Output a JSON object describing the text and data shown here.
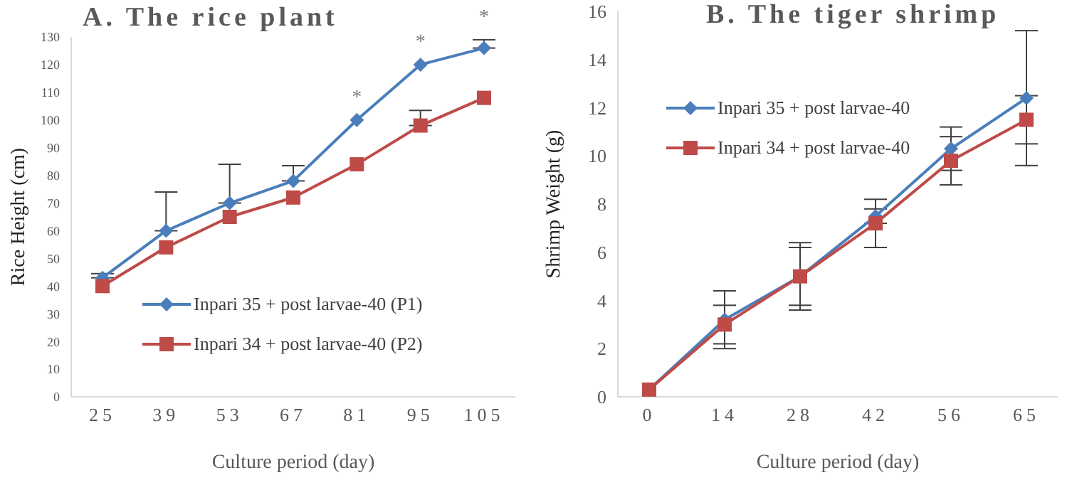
{
  "chart_data": [
    {
      "type": "line",
      "title": "A. The rice plant",
      "xlabel": "Culture period (day)",
      "ylabel": "Rice Height (cm)",
      "categories": [
        "25",
        "39",
        "53",
        "67",
        "81",
        "95",
        "105"
      ],
      "series": [
        {
          "name": "Inpari 35 + post larvae-40 (P1)",
          "color": "#4a7ebb",
          "marker": "diamond",
          "values": [
            43,
            60,
            70,
            78,
            100,
            120,
            126
          ],
          "errors": [
            [
              43,
              44.5
            ],
            [
              60,
              74
            ],
            [
              70,
              84
            ],
            [
              78,
              83.5
            ],
            null,
            null,
            [
              126,
              129
            ]
          ]
        },
        {
          "name": "Inpari 34 + post larvae-40 (P2)",
          "color": "#be4b48",
          "marker": "square",
          "values": [
            40,
            54,
            65,
            72,
            84,
            98,
            108
          ],
          "errors": [
            null,
            null,
            null,
            null,
            null,
            [
              98,
              103.5
            ],
            null
          ]
        }
      ],
      "ylim": [
        0,
        130
      ],
      "yticks": [
        0,
        10,
        20,
        30,
        40,
        50,
        60,
        70,
        80,
        90,
        100,
        110,
        120,
        130
      ],
      "annotations": [
        {
          "text": "*",
          "x": "81",
          "y": 100
        },
        {
          "text": "*",
          "x": "95",
          "y": 120
        },
        {
          "text": "*",
          "x": "105",
          "y": 129
        }
      ],
      "legend": "bottom right",
      "grid": false
    },
    {
      "type": "line",
      "title": "B. The tiger shrimp",
      "xlabel": "Culture period (day)",
      "ylabel": "Shrimp Weight (g)",
      "categories": [
        "0",
        "14",
        "28",
        "42",
        "56",
        "65"
      ],
      "series": [
        {
          "name": "Inpari 35 + post larvae-40",
          "color": "#4a7ebb",
          "marker": "diamond",
          "values": [
            0.3,
            3.2,
            5.0,
            7.5,
            10.3,
            12.4
          ],
          "errors": [
            null,
            1.2,
            1.2,
            0.3,
            0.9,
            2.8
          ]
        },
        {
          "name": "Inpari 34 + post larvae-40",
          "color": "#be4b48",
          "marker": "square",
          "values": [
            0.3,
            3.0,
            5.0,
            7.2,
            9.8,
            11.5
          ],
          "errors": [
            null,
            0.8,
            1.4,
            1.0,
            1.0,
            1.0
          ]
        }
      ],
      "ylim": [
        0,
        16
      ],
      "yticks": [
        0,
        2,
        4,
        6,
        8,
        10,
        12,
        14,
        16
      ],
      "legend": "top left",
      "grid": false
    }
  ]
}
